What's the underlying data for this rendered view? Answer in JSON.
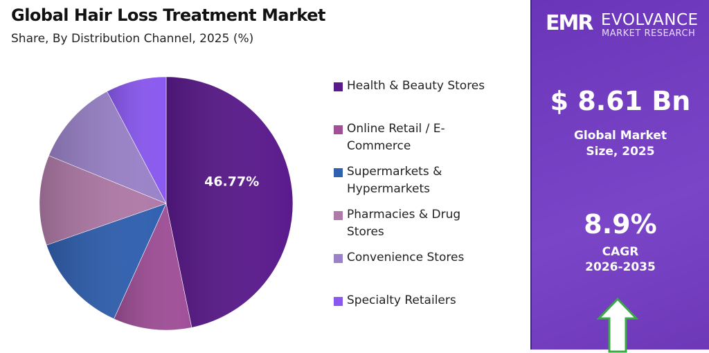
{
  "header": {
    "title": "Global Hair Loss Treatment Market",
    "subtitle": "Share, By Distribution Channel, 2025 (%)"
  },
  "chart_data": {
    "type": "pie",
    "title": "Global Hair Loss Treatment Market",
    "subtitle": "Share, By Distribution Channel, 2025 (%)",
    "categories": [
      "Health & Beauty Stores",
      "Online Retail / E-Commerce",
      "Supermarkets & Hypermarkets",
      "Pharmacies & Drug Stores",
      "Convenience Stores",
      "Specialty Retailers"
    ],
    "values": [
      46.77,
      10.0,
      12.9,
      11.5,
      11.1,
      7.73
    ],
    "colors": [
      "#5a1a8c",
      "#a04f98",
      "#3060b0",
      "#b07aa8",
      "#9a82c8",
      "#8a58f0"
    ],
    "data_labels": [
      "46.77%",
      "",
      "",
      "",
      "",
      ""
    ],
    "legend_placement": "right",
    "legend": [
      {
        "line1": "Health & Beauty Stores",
        "line2": ""
      },
      {
        "line1": "Online Retail / E-",
        "line2": "Commerce"
      },
      {
        "line1": "Supermarkets &",
        "line2": "Hypermarkets"
      },
      {
        "line1": "Pharmacies & Drug",
        "line2": "Stores"
      },
      {
        "line1": "Convenience Stores",
        "line2": ""
      },
      {
        "line1": "Specialty Retailers",
        "line2": ""
      }
    ]
  },
  "sidebar": {
    "logo": {
      "mark": "EMR",
      "name": "EVOLVANCE",
      "sub": "MARKET RESEARCH"
    },
    "market_size": "$ 8.61 Bn",
    "market_size_label1": "Global Market",
    "market_size_label2": "Size, 2025",
    "cagr": "8.9%",
    "cagr_label1": "CAGR",
    "cagr_label2": "2026-2035",
    "arrow_icon": "up-arrow-icon",
    "accent": "#7b45c8",
    "arrow_color": "#3aa845"
  }
}
